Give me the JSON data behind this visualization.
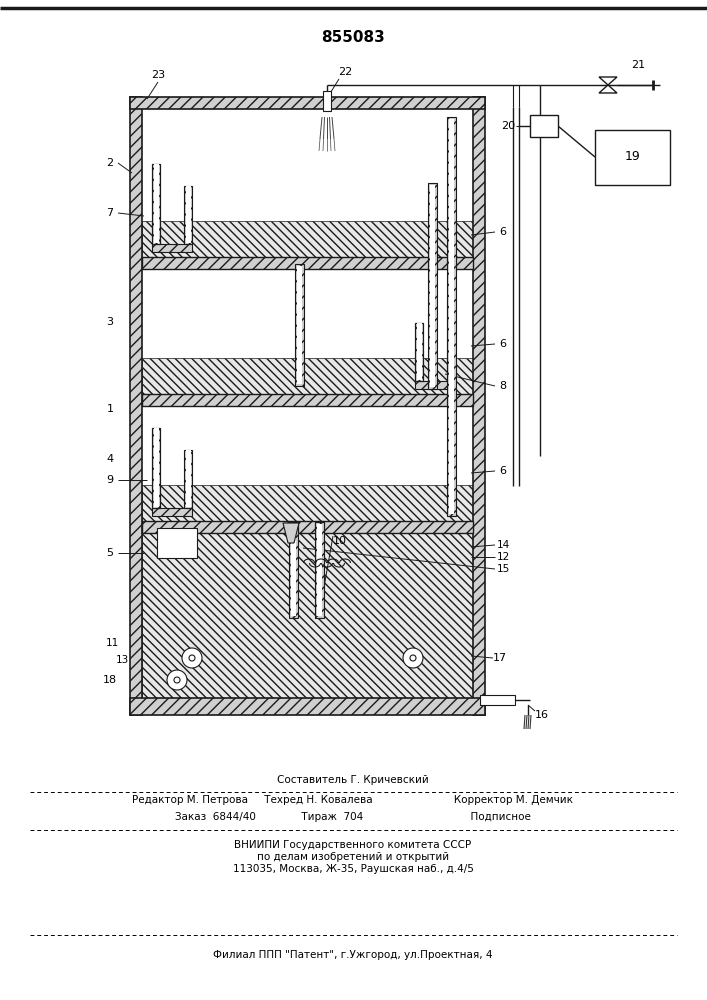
{
  "title": "855083",
  "bg_color": "#ffffff",
  "lc": "#1a1a1a",
  "fig_width": 7.07,
  "fig_height": 10.0,
  "footer": {
    "l1": "Составитель Г. Кричевский",
    "l2": "Редактор М. Петрова     Техред Н. Ковалева                         Корректор М. Демчик",
    "l3": "Заказ  6844/40              Тираж  704                                 Подписное",
    "l4": "ВНИИПИ Государственного комитета СССР",
    "l5": "по делам изобретений и открытий",
    "l6": "113035, Москва, Ж-35, Раушская наб., д.4/5",
    "l7": "Филиал ППП \"Патент\", г.Ужгород, ул.Проектная, 4"
  }
}
